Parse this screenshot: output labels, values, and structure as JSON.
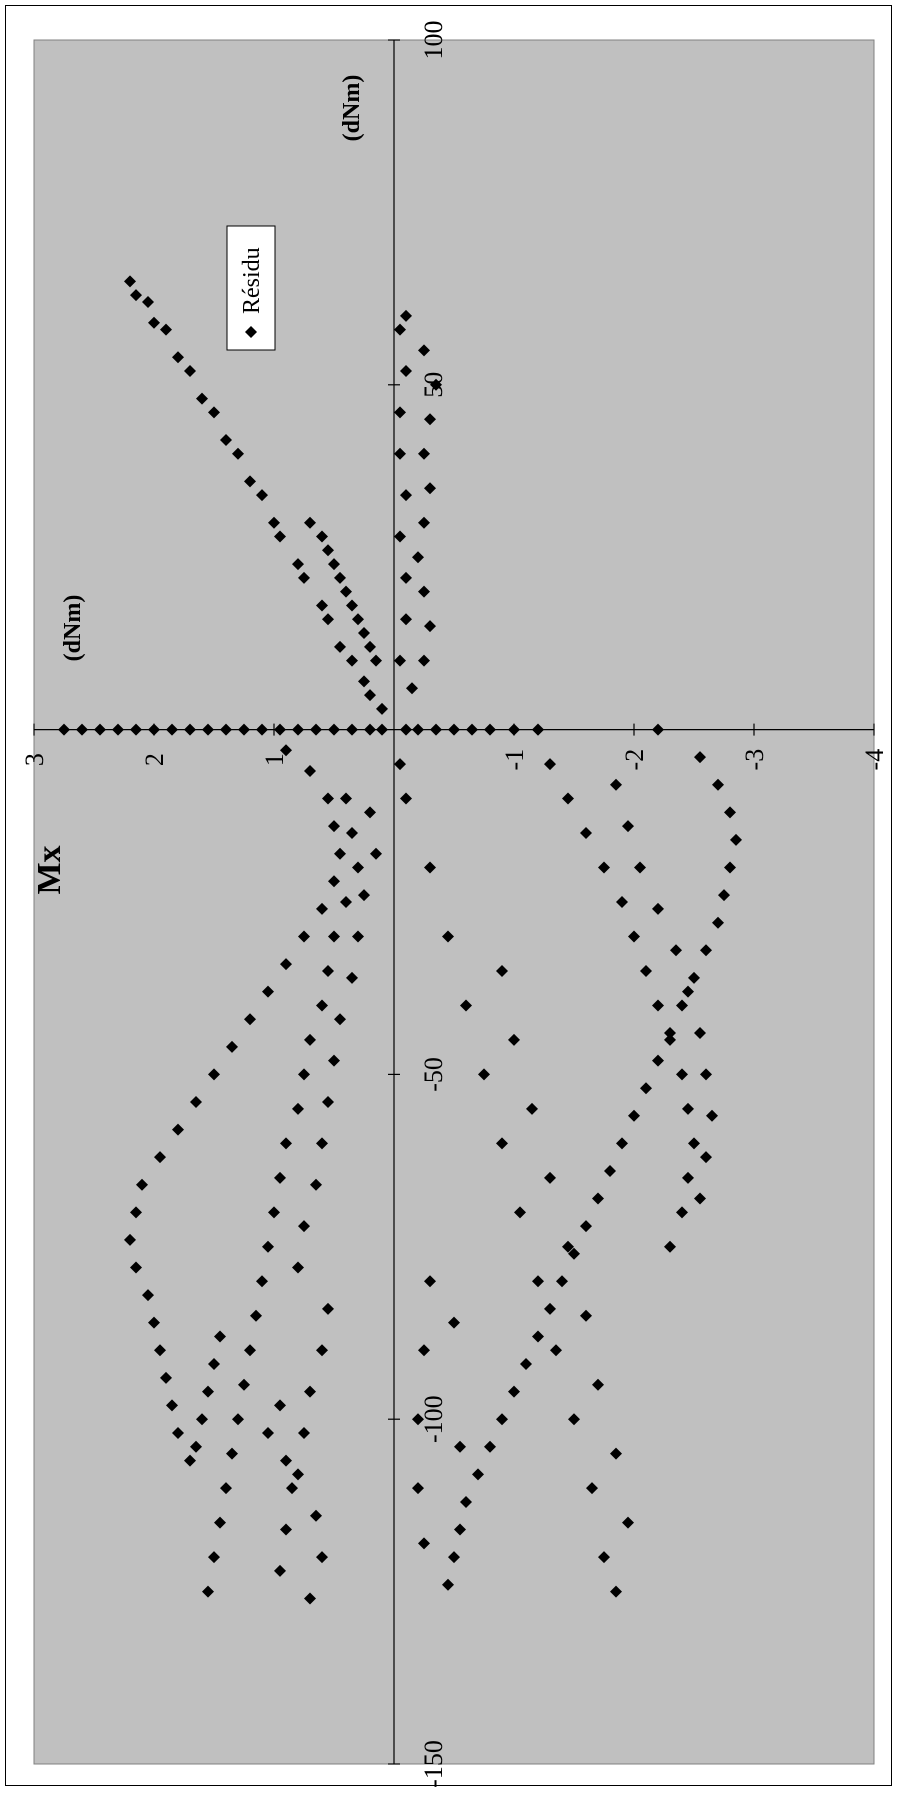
{
  "chart_data": {
    "type": "scatter",
    "title": "Mx",
    "xlabel": "(dNm)",
    "ylabel": "(dNm)",
    "orientation": "rotated-90-ccw",
    "xlim": [
      -150,
      100
    ],
    "ylim": [
      -4,
      3
    ],
    "x_ticks": [
      100,
      50,
      -50,
      -100,
      -150
    ],
    "y_ticks": [
      3,
      2,
      1,
      -1,
      -2,
      -3,
      -4
    ],
    "grid": false,
    "legend_position": "top-right (rotated)",
    "colors": {
      "plot_area": "#c0c0c0",
      "marker": "#000000",
      "axis": "#000000"
    },
    "series": [
      {
        "name": "Résidu",
        "marker": "diamond",
        "points": [
          [
            0,
            2.75
          ],
          [
            0,
            2.6
          ],
          [
            0,
            2.45
          ],
          [
            0,
            2.3
          ],
          [
            0,
            2.15
          ],
          [
            0,
            2.0
          ],
          [
            0,
            1.85
          ],
          [
            0,
            1.7
          ],
          [
            0,
            1.55
          ],
          [
            0,
            1.4
          ],
          [
            0,
            1.25
          ],
          [
            0,
            1.1
          ],
          [
            0,
            0.95
          ],
          [
            0,
            0.8
          ],
          [
            0,
            0.65
          ],
          [
            0,
            0.5
          ],
          [
            0,
            0.35
          ],
          [
            0,
            0.2
          ],
          [
            0,
            0.1
          ],
          [
            0,
            -0.1
          ],
          [
            0,
            -0.2
          ],
          [
            0,
            -0.35
          ],
          [
            0,
            -0.5
          ],
          [
            0,
            -0.65
          ],
          [
            0,
            -0.8
          ],
          [
            0,
            -1.0
          ],
          [
            0,
            -1.2
          ],
          [
            0,
            -2.2
          ],
          [
            65,
            2.2
          ],
          [
            62,
            2.05
          ],
          [
            58,
            1.9
          ],
          [
            52,
            1.7
          ],
          [
            46,
            1.5
          ],
          [
            40,
            1.3
          ],
          [
            34,
            1.1
          ],
          [
            28,
            0.95
          ],
          [
            22,
            0.75
          ],
          [
            16,
            0.55
          ],
          [
            10,
            0.35
          ],
          [
            5,
            0.2
          ],
          [
            63,
            2.15
          ],
          [
            59,
            2.0
          ],
          [
            54,
            1.8
          ],
          [
            48,
            1.6
          ],
          [
            42,
            1.4
          ],
          [
            36,
            1.2
          ],
          [
            30,
            1.0
          ],
          [
            24,
            0.8
          ],
          [
            18,
            0.6
          ],
          [
            12,
            0.45
          ],
          [
            7,
            0.25
          ],
          [
            3,
            0.1
          ],
          [
            30,
            0.7
          ],
          [
            26,
            0.55
          ],
          [
            22,
            0.45
          ],
          [
            18,
            0.35
          ],
          [
            14,
            0.25
          ],
          [
            10,
            0.15
          ],
          [
            28,
            0.6
          ],
          [
            24,
            0.5
          ],
          [
            20,
            0.4
          ],
          [
            16,
            0.3
          ],
          [
            12,
            0.2
          ],
          [
            60,
            -0.1
          ],
          [
            55,
            -0.25
          ],
          [
            50,
            -0.35
          ],
          [
            45,
            -0.3
          ],
          [
            40,
            -0.25
          ],
          [
            35,
            -0.3
          ],
          [
            30,
            -0.25
          ],
          [
            25,
            -0.2
          ],
          [
            20,
            -0.25
          ],
          [
            15,
            -0.3
          ],
          [
            10,
            -0.25
          ],
          [
            6,
            -0.15
          ],
          [
            58,
            -0.05
          ],
          [
            52,
            -0.1
          ],
          [
            46,
            -0.05
          ],
          [
            40,
            -0.05
          ],
          [
            34,
            -0.1
          ],
          [
            28,
            -0.05
          ],
          [
            22,
            -0.1
          ],
          [
            16,
            -0.1
          ],
          [
            10,
            -0.05
          ],
          [
            -3,
            0.9
          ],
          [
            -6,
            0.7
          ],
          [
            -10,
            0.55
          ],
          [
            -14,
            0.5
          ],
          [
            -18,
            0.45
          ],
          [
            -22,
            0.5
          ],
          [
            -26,
            0.6
          ],
          [
            -30,
            0.75
          ],
          [
            -34,
            0.9
          ],
          [
            -38,
            1.05
          ],
          [
            -42,
            1.2
          ],
          [
            -46,
            1.35
          ],
          [
            -50,
            1.5
          ],
          [
            -54,
            1.65
          ],
          [
            -58,
            1.8
          ],
          [
            -62,
            1.95
          ],
          [
            -66,
            2.1
          ],
          [
            -70,
            2.15
          ],
          [
            -74,
            2.2
          ],
          [
            -78,
            2.15
          ],
          [
            -82,
            2.05
          ],
          [
            -86,
            2.0
          ],
          [
            -90,
            1.95
          ],
          [
            -94,
            1.9
          ],
          [
            -98,
            1.85
          ],
          [
            -102,
            1.8
          ],
          [
            -106,
            1.7
          ],
          [
            -104,
            1.65
          ],
          [
            -100,
            1.6
          ],
          [
            -96,
            1.55
          ],
          [
            -92,
            1.5
          ],
          [
            -88,
            1.45
          ],
          [
            -10,
            0.4
          ],
          [
            -15,
            0.35
          ],
          [
            -20,
            0.3
          ],
          [
            -25,
            0.4
          ],
          [
            -30,
            0.5
          ],
          [
            -35,
            0.55
          ],
          [
            -40,
            0.6
          ],
          [
            -45,
            0.7
          ],
          [
            -50,
            0.75
          ],
          [
            -55,
            0.8
          ],
          [
            -60,
            0.9
          ],
          [
            -65,
            0.95
          ],
          [
            -70,
            1.0
          ],
          [
            -75,
            1.05
          ],
          [
            -80,
            1.1
          ],
          [
            -85,
            1.15
          ],
          [
            -90,
            1.2
          ],
          [
            -95,
            1.25
          ],
          [
            -100,
            1.3
          ],
          [
            -105,
            1.35
          ],
          [
            -110,
            1.4
          ],
          [
            -115,
            1.45
          ],
          [
            -120,
            1.5
          ],
          [
            -125,
            1.55
          ],
          [
            -12,
            0.2
          ],
          [
            -18,
            0.15
          ],
          [
            -24,
            0.25
          ],
          [
            -30,
            0.3
          ],
          [
            -36,
            0.35
          ],
          [
            -42,
            0.45
          ],
          [
            -48,
            0.5
          ],
          [
            -54,
            0.55
          ],
          [
            -60,
            0.6
          ],
          [
            -66,
            0.65
          ],
          [
            -72,
            0.75
          ],
          [
            -78,
            0.8
          ],
          [
            -84,
            0.55
          ],
          [
            -90,
            0.6
          ],
          [
            -96,
            0.7
          ],
          [
            -102,
            0.75
          ],
          [
            -108,
            0.8
          ],
          [
            -114,
            0.65
          ],
          [
            -120,
            0.6
          ],
          [
            -126,
            0.7
          ],
          [
            -98,
            0.95
          ],
          [
            -102,
            1.05
          ],
          [
            -106,
            0.9
          ],
          [
            -110,
            0.85
          ],
          [
            -116,
            0.9
          ],
          [
            -122,
            0.95
          ],
          [
            -5,
            -0.05
          ],
          [
            -10,
            -0.1
          ],
          [
            -20,
            -0.3
          ],
          [
            -30,
            -0.45
          ],
          [
            -40,
            -0.6
          ],
          [
            -50,
            -0.75
          ],
          [
            -60,
            -0.9
          ],
          [
            -70,
            -1.05
          ],
          [
            -80,
            -1.2
          ],
          [
            -90,
            -1.35
          ],
          [
            -100,
            -1.5
          ],
          [
            -110,
            -1.65
          ],
          [
            -120,
            -1.75
          ],
          [
            -125,
            -1.85
          ],
          [
            -35,
            -0.9
          ],
          [
            -45,
            -1.0
          ],
          [
            -55,
            -1.15
          ],
          [
            -65,
            -1.3
          ],
          [
            -75,
            -1.45
          ],
          [
            -85,
            -1.6
          ],
          [
            -95,
            -1.7
          ],
          [
            -105,
            -1.85
          ],
          [
            -115,
            -1.95
          ],
          [
            0,
            -1.2
          ],
          [
            -5,
            -1.3
          ],
          [
            -10,
            -1.45
          ],
          [
            -15,
            -1.6
          ],
          [
            -20,
            -1.75
          ],
          [
            -25,
            -1.9
          ],
          [
            -30,
            -2.0
          ],
          [
            -35,
            -2.1
          ],
          [
            -40,
            -2.2
          ],
          [
            -45,
            -2.3
          ],
          [
            -50,
            -2.4
          ],
          [
            -55,
            -2.45
          ],
          [
            -60,
            -2.5
          ],
          [
            -65,
            -2.45
          ],
          [
            -70,
            -2.4
          ],
          [
            -75,
            -2.3
          ],
          [
            -8,
            -1.85
          ],
          [
            -14,
            -1.95
          ],
          [
            -20,
            -2.05
          ],
          [
            -26,
            -2.2
          ],
          [
            -32,
            -2.35
          ],
          [
            -38,
            -2.45
          ],
          [
            -44,
            -2.55
          ],
          [
            -50,
            -2.6
          ],
          [
            -56,
            -2.65
          ],
          [
            -62,
            -2.6
          ],
          [
            -68,
            -2.55
          ],
          [
            -4,
            -2.55
          ],
          [
            -8,
            -2.7
          ],
          [
            -12,
            -2.8
          ],
          [
            -16,
            -2.85
          ],
          [
            -20,
            -2.8
          ],
          [
            -24,
            -2.75
          ],
          [
            -28,
            -2.7
          ],
          [
            -32,
            -2.6
          ],
          [
            -36,
            -2.5
          ],
          [
            -40,
            -2.4
          ],
          [
            -44,
            -2.3
          ],
          [
            -48,
            -2.2
          ],
          [
            -52,
            -2.1
          ],
          [
            -56,
            -2.0
          ],
          [
            -60,
            -1.9
          ],
          [
            -64,
            -1.8
          ],
          [
            -68,
            -1.7
          ],
          [
            -72,
            -1.6
          ],
          [
            -76,
            -1.5
          ],
          [
            -80,
            -1.4
          ],
          [
            -84,
            -1.3
          ],
          [
            -88,
            -1.2
          ],
          [
            -92,
            -1.1
          ],
          [
            -96,
            -1.0
          ],
          [
            -100,
            -0.9
          ],
          [
            -104,
            -0.8
          ],
          [
            -108,
            -0.7
          ],
          [
            -112,
            -0.6
          ],
          [
            -116,
            -0.55
          ],
          [
            -120,
            -0.5
          ],
          [
            -124,
            -0.45
          ],
          [
            -80,
            -0.3
          ],
          [
            -90,
            -0.25
          ],
          [
            -100,
            -0.2
          ],
          [
            -110,
            -0.2
          ],
          [
            -118,
            -0.25
          ],
          [
            -86,
            -0.5
          ],
          [
            -104,
            -0.55
          ]
        ]
      }
    ]
  }
}
